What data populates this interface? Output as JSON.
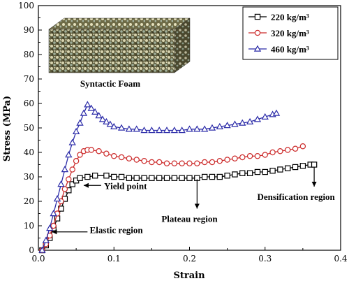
{
  "chart_data": {
    "type": "line",
    "title": "",
    "xlabel": "Strain",
    "ylabel": "Stress (MPa)",
    "xlim": [
      0.0,
      0.4
    ],
    "ylim": [
      0,
      100
    ],
    "x_ticks": [
      "0.0",
      "0.1",
      "0.2",
      "0.3",
      "0.4"
    ],
    "y_ticks": [
      "0",
      "10",
      "20",
      "30",
      "40",
      "50",
      "60",
      "70",
      "80",
      "90",
      "100"
    ],
    "legend_position": "top-right",
    "inset_label": "Syntactic Foam",
    "annotations": [
      {
        "text": "Yield point",
        "x": 0.085,
        "y": 26
      },
      {
        "text": "Plateau region",
        "x": 0.2,
        "y": 13
      },
      {
        "text": "Densification region",
        "x": 0.32,
        "y": 22
      },
      {
        "text": "Elastic region",
        "x": 0.065,
        "y": 9
      }
    ],
    "series": [
      {
        "name": "220 kg/m³",
        "color": "#000000",
        "marker": "square",
        "points": [
          [
            0.005,
            0
          ],
          [
            0.01,
            2
          ],
          [
            0.015,
            5
          ],
          [
            0.02,
            9
          ],
          [
            0.025,
            13
          ],
          [
            0.03,
            17
          ],
          [
            0.035,
            21
          ],
          [
            0.04,
            24.5
          ],
          [
            0.045,
            27
          ],
          [
            0.05,
            28.5
          ],
          [
            0.055,
            29.5
          ],
          [
            0.065,
            30
          ],
          [
            0.075,
            30.5
          ],
          [
            0.09,
            30.5
          ],
          [
            0.1,
            30
          ],
          [
            0.11,
            30
          ],
          [
            0.12,
            29.5
          ],
          [
            0.13,
            29.5
          ],
          [
            0.14,
            29.5
          ],
          [
            0.15,
            29.5
          ],
          [
            0.16,
            29.5
          ],
          [
            0.17,
            29.5
          ],
          [
            0.18,
            29.5
          ],
          [
            0.19,
            29.5
          ],
          [
            0.2,
            29.5
          ],
          [
            0.21,
            29.5
          ],
          [
            0.22,
            30
          ],
          [
            0.23,
            30
          ],
          [
            0.24,
            30
          ],
          [
            0.25,
            30.5
          ],
          [
            0.26,
            31
          ],
          [
            0.27,
            31.5
          ],
          [
            0.28,
            31.5
          ],
          [
            0.29,
            32
          ],
          [
            0.3,
            32
          ],
          [
            0.31,
            32.5
          ],
          [
            0.32,
            33
          ],
          [
            0.33,
            33.5
          ],
          [
            0.34,
            34
          ],
          [
            0.35,
            34.5
          ],
          [
            0.36,
            35
          ],
          [
            0.365,
            35
          ]
        ]
      },
      {
        "name": "320 kg/m³",
        "color": "#cc2b2b",
        "marker": "circle",
        "points": [
          [
            0.005,
            0
          ],
          [
            0.01,
            2.5
          ],
          [
            0.015,
            6
          ],
          [
            0.02,
            10
          ],
          [
            0.025,
            15
          ],
          [
            0.03,
            20
          ],
          [
            0.035,
            25
          ],
          [
            0.04,
            29
          ],
          [
            0.045,
            33
          ],
          [
            0.05,
            36.5
          ],
          [
            0.055,
            39
          ],
          [
            0.06,
            40.5
          ],
          [
            0.065,
            41
          ],
          [
            0.07,
            41
          ],
          [
            0.08,
            40.5
          ],
          [
            0.09,
            39.5
          ],
          [
            0.1,
            38.5
          ],
          [
            0.11,
            38
          ],
          [
            0.12,
            37.5
          ],
          [
            0.13,
            37
          ],
          [
            0.14,
            36.5
          ],
          [
            0.15,
            36
          ],
          [
            0.16,
            36
          ],
          [
            0.17,
            35.5
          ],
          [
            0.18,
            35.5
          ],
          [
            0.19,
            35.5
          ],
          [
            0.2,
            35.5
          ],
          [
            0.21,
            35.5
          ],
          [
            0.22,
            36
          ],
          [
            0.23,
            36
          ],
          [
            0.24,
            36.5
          ],
          [
            0.25,
            37
          ],
          [
            0.26,
            37.5
          ],
          [
            0.27,
            38
          ],
          [
            0.28,
            38.5
          ],
          [
            0.29,
            38.5
          ],
          [
            0.3,
            39
          ],
          [
            0.31,
            40
          ],
          [
            0.32,
            40.5
          ],
          [
            0.33,
            41
          ],
          [
            0.34,
            41.5
          ],
          [
            0.35,
            42.5
          ]
        ]
      },
      {
        "name": "460 kg/m³",
        "color": "#2b2ba8",
        "marker": "triangle",
        "points": [
          [
            0.005,
            0
          ],
          [
            0.01,
            4
          ],
          [
            0.015,
            9
          ],
          [
            0.02,
            15
          ],
          [
            0.025,
            21
          ],
          [
            0.03,
            27
          ],
          [
            0.035,
            33
          ],
          [
            0.04,
            39
          ],
          [
            0.045,
            44
          ],
          [
            0.05,
            48.5
          ],
          [
            0.055,
            52
          ],
          [
            0.06,
            56
          ],
          [
            0.065,
            59.5
          ],
          [
            0.07,
            58
          ],
          [
            0.075,
            56.5
          ],
          [
            0.08,
            55
          ],
          [
            0.085,
            53.5
          ],
          [
            0.09,
            52.5
          ],
          [
            0.095,
            51.5
          ],
          [
            0.1,
            50.5
          ],
          [
            0.11,
            50
          ],
          [
            0.12,
            49.5
          ],
          [
            0.13,
            49.5
          ],
          [
            0.14,
            49
          ],
          [
            0.15,
            49
          ],
          [
            0.16,
            49
          ],
          [
            0.17,
            49
          ],
          [
            0.18,
            49
          ],
          [
            0.19,
            49
          ],
          [
            0.2,
            49.5
          ],
          [
            0.21,
            49.5
          ],
          [
            0.22,
            49.5
          ],
          [
            0.23,
            50
          ],
          [
            0.24,
            50.5
          ],
          [
            0.25,
            51
          ],
          [
            0.26,
            51.5
          ],
          [
            0.27,
            52
          ],
          [
            0.28,
            52.5
          ],
          [
            0.29,
            53.5
          ],
          [
            0.3,
            54.5
          ],
          [
            0.31,
            55.5
          ],
          [
            0.315,
            56
          ]
        ]
      }
    ]
  }
}
